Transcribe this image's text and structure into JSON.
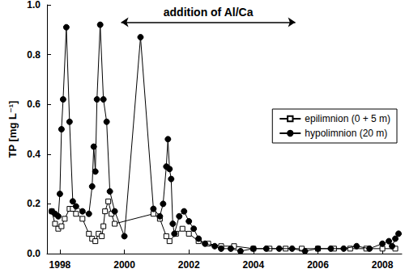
{
  "chart_data": {
    "type": "line",
    "y_label": "TP [mg L⁻¹]",
    "xlim": [
      1997.6,
      2008.6
    ],
    "xticks": [
      1998,
      2000,
      2002,
      2004,
      2006,
      2008
    ],
    "ylim": [
      0,
      1
    ],
    "yticks": [
      {
        "value": 0,
        "label": "0.0"
      },
      0.2,
      0.4,
      0.6,
      0.8,
      {
        "value": 1,
        "label": "1.0"
      }
    ],
    "grid": false,
    "legend": "right",
    "annotations": [
      {
        "text": "addition of Al/Ca",
        "x_start": 1999.9,
        "x_end": 2005.3,
        "y": 0.93
      }
    ],
    "series": [
      {
        "name": "epilimnion (0 + 5 m)",
        "color": "#000000",
        "marker": "open_square",
        "line_style": "solid",
        "x": [
          1997.75,
          1997.85,
          1997.95,
          1998.05,
          1998.15,
          1998.3,
          1998.4,
          1998.5,
          1998.7,
          1998.9,
          1999.0,
          1999.1,
          1999.2,
          1999.3,
          1999.35,
          1999.4,
          1999.5,
          1999.6,
          1999.7,
          2000.9,
          2001.1,
          2001.3,
          2001.4,
          2001.6,
          2001.8,
          2002.0,
          2002.3,
          2002.6,
          2003.0,
          2003.4,
          2004.0,
          2004.5,
          2005.0,
          2005.5,
          2006.0,
          2006.5,
          2007.0,
          2007.5,
          2008.0,
          2008.4
        ],
        "values": [
          0.17,
          0.12,
          0.1,
          0.11,
          0.14,
          0.18,
          0.18,
          0.16,
          0.14,
          0.08,
          0.06,
          0.05,
          0.08,
          0.07,
          0.11,
          0.17,
          0.21,
          0.16,
          0.12,
          0.16,
          0.14,
          0.07,
          0.05,
          0.08,
          0.1,
          0.08,
          0.05,
          0.04,
          0.03,
          0.03,
          0.02,
          0.02,
          0.02,
          0.02,
          0.02,
          0.02,
          0.02,
          0.02,
          0.02,
          0.02
        ]
      },
      {
        "name": "hypolimnion (20 m)",
        "color": "#000000",
        "marker": "filled_circle",
        "line_style": "solid",
        "x": [
          1997.75,
          1997.85,
          1997.95,
          1998.0,
          1998.05,
          1998.1,
          1998.2,
          1998.3,
          1998.4,
          1998.5,
          1998.7,
          1998.9,
          1999.0,
          1999.05,
          1999.1,
          1999.15,
          1999.25,
          1999.35,
          1999.45,
          1999.55,
          1999.7,
          2000.0,
          2000.5,
          2000.9,
          2001.1,
          2001.2,
          2001.3,
          2001.35,
          2001.4,
          2001.45,
          2001.5,
          2001.55,
          2001.7,
          2001.85,
          2002.0,
          2002.15,
          2002.3,
          2002.5,
          2002.8,
          2003.0,
          2003.3,
          2003.6,
          2004.0,
          2004.4,
          2004.8,
          2005.2,
          2005.6,
          2006.0,
          2006.4,
          2006.8,
          2007.2,
          2007.6,
          2008.0,
          2008.2,
          2008.3,
          2008.4,
          2008.5
        ],
        "values": [
          0.17,
          0.16,
          0.15,
          0.24,
          0.5,
          0.62,
          0.91,
          0.53,
          0.21,
          0.19,
          0.17,
          0.16,
          0.27,
          0.43,
          0.33,
          0.62,
          0.92,
          0.62,
          0.53,
          0.25,
          0.17,
          0.07,
          0.87,
          0.18,
          0.15,
          0.2,
          0.35,
          0.46,
          0.34,
          0.3,
          0.12,
          0.08,
          0.15,
          0.17,
          0.13,
          0.1,
          0.06,
          0.04,
          0.03,
          0.02,
          0.02,
          0.01,
          0.02,
          0.02,
          0.02,
          0.02,
          0.01,
          0.02,
          0.02,
          0.02,
          0.03,
          0.02,
          0.04,
          0.05,
          0.03,
          0.06,
          0.08
        ]
      }
    ]
  }
}
